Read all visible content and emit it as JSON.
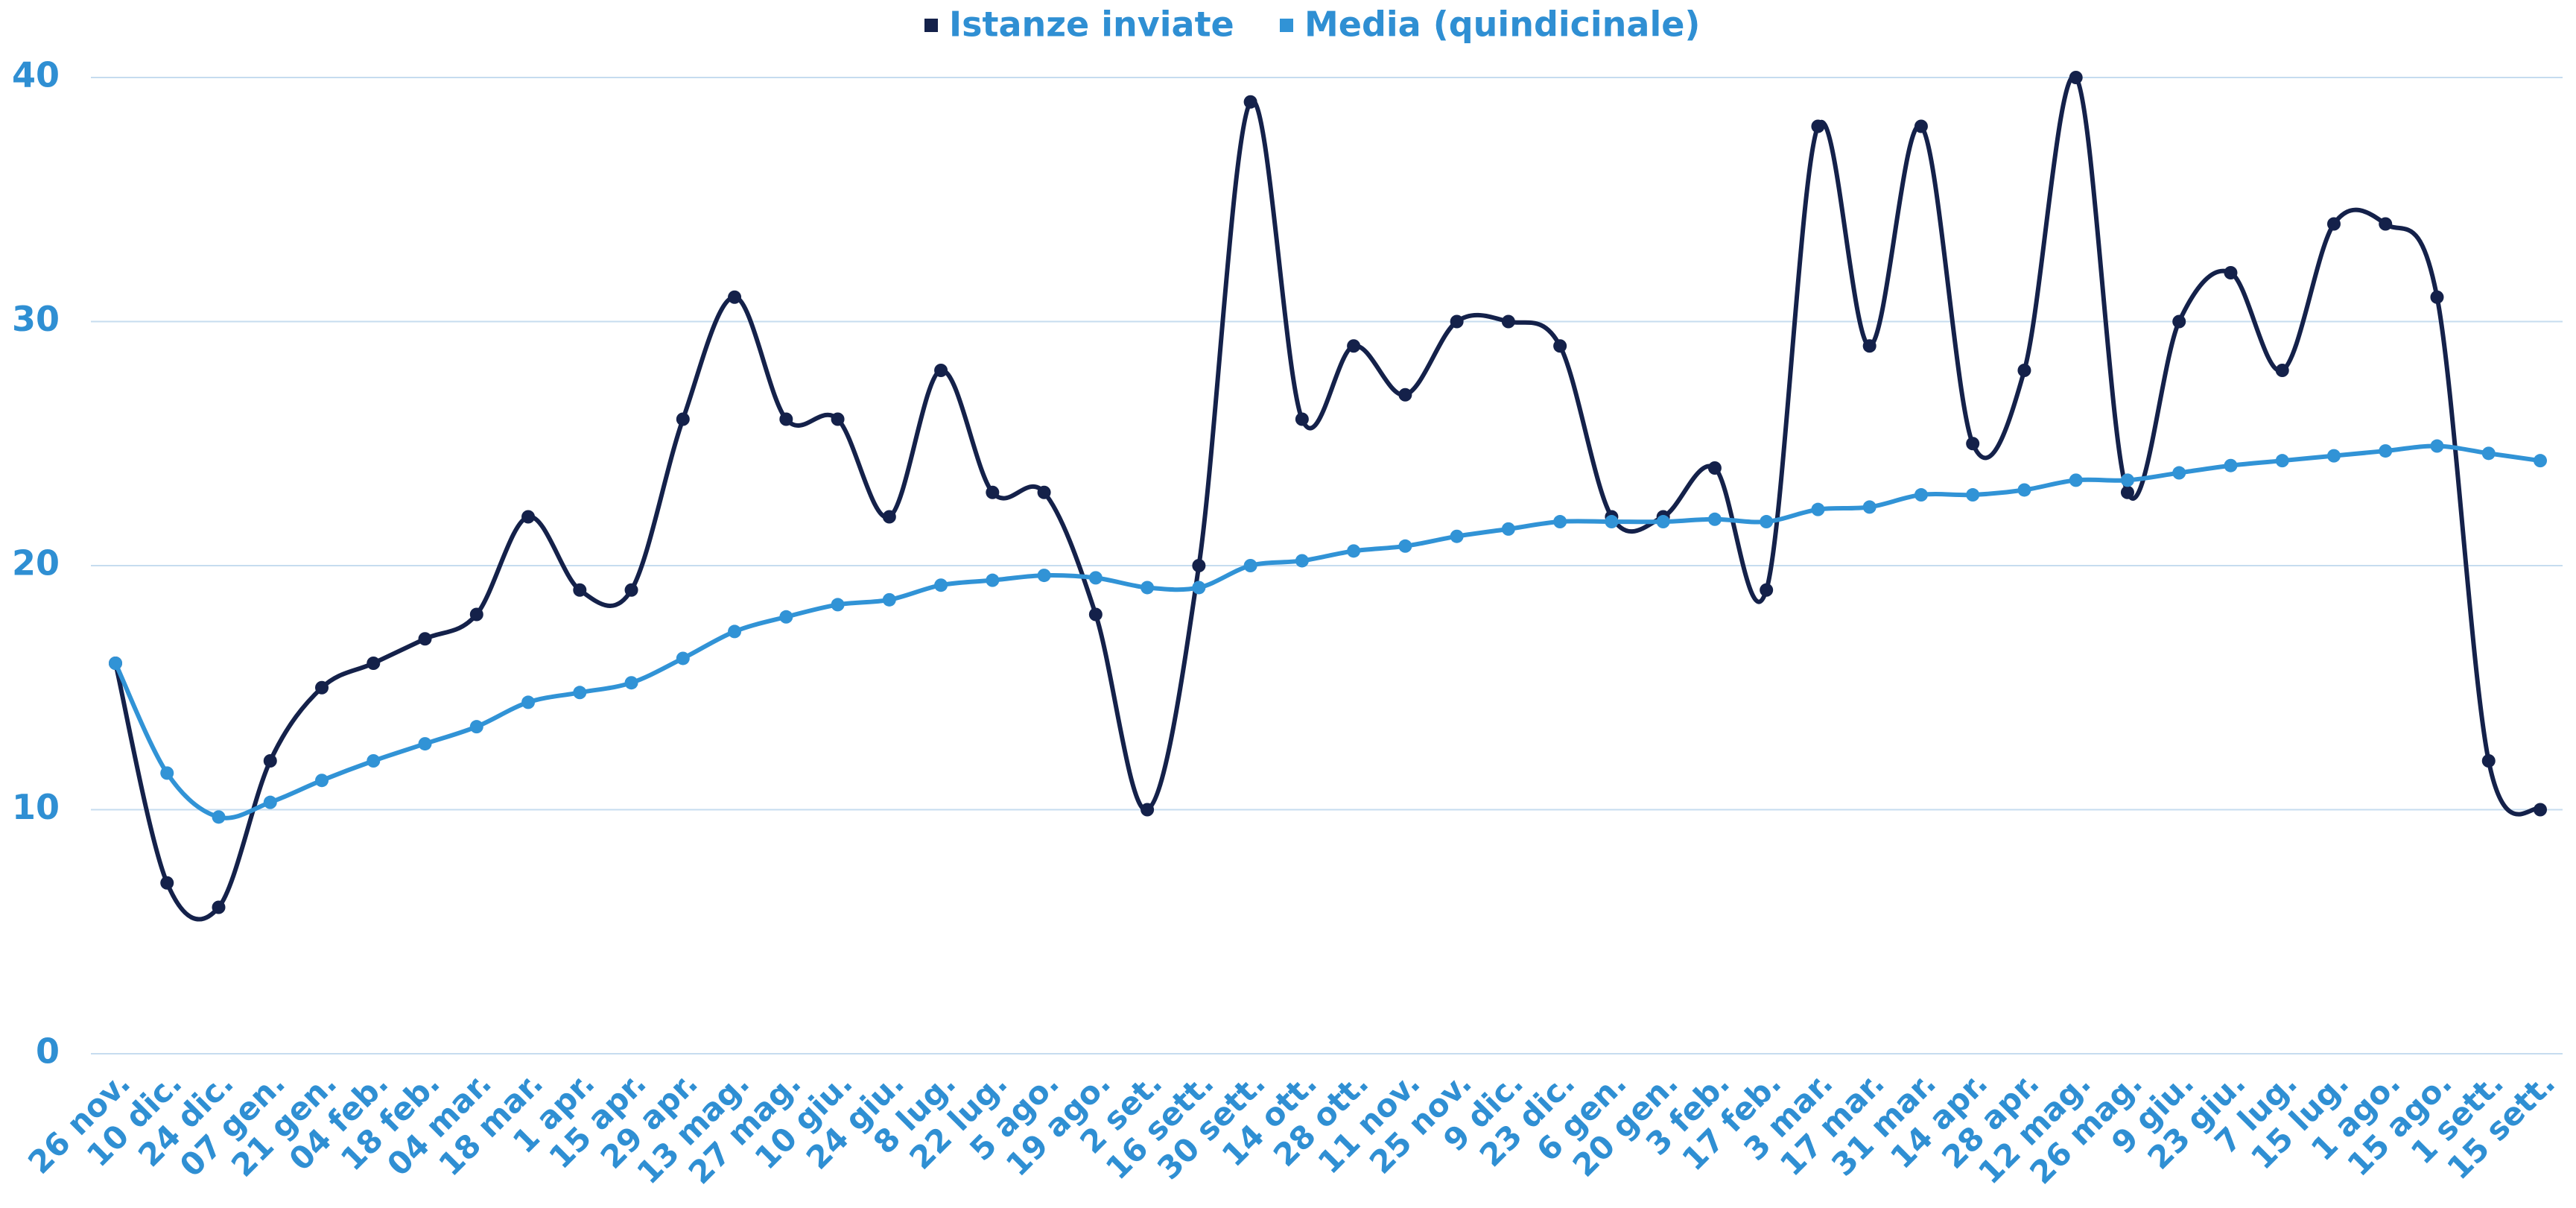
{
  "chart_data": {
    "type": "line",
    "categories": [
      "26 nov.",
      "10 dic.",
      "24 dic.",
      "07 gen.",
      "21 gen.",
      "04 feb.",
      "18 feb.",
      "04 mar.",
      "18 mar.",
      "1 apr.",
      "15 apr.",
      "29 apr.",
      "13 mag.",
      "27 mag.",
      "10 giu.",
      "24 giu.",
      "8 lug.",
      "22 lug.",
      "5 ago.",
      "19 ago.",
      "2 set.",
      "16 sett.",
      "30 sett.",
      "14 ott.",
      "28 ott.",
      "11 nov.",
      "25 nov.",
      "9 dic.",
      "23 dic.",
      "6 gen.",
      "20 gen.",
      "3 feb.",
      "17 feb.",
      "3 mar.",
      "17 mar.",
      "31 mar.",
      "14 apr.",
      "28 apr.",
      "12 mag.",
      "26 mag.",
      "9 giu.",
      "23 giu.",
      "7 lug.",
      "15 lug.",
      "1 ago.",
      "15 ago.",
      "1 sett.",
      "15 sett."
    ],
    "series": [
      {
        "name": "Istanze inviate",
        "color": "#14214a",
        "values": [
          16,
          7,
          6,
          12,
          15,
          16,
          17,
          18,
          22,
          19,
          19,
          26,
          31,
          26,
          26,
          22,
          28,
          23,
          23,
          18,
          10,
          20,
          39,
          26,
          29,
          27,
          30,
          30,
          29,
          22,
          22,
          24,
          19,
          38,
          29,
          38,
          25,
          28,
          40,
          23,
          30,
          32,
          28,
          34,
          34,
          31,
          12,
          10
        ]
      },
      {
        "name": "Media (quindicinale)",
        "color": "#3193d6",
        "values": [
          16,
          11.5,
          9.7,
          10.3,
          11.2,
          12,
          12.7,
          13.4,
          14.4,
          14.8,
          15.2,
          16.2,
          17.3,
          17.9,
          18.4,
          18.6,
          19.2,
          19.4,
          19.6,
          19.5,
          19.1,
          19.1,
          20,
          20.2,
          20.6,
          20.8,
          21.2,
          21.5,
          21.8,
          21.8,
          21.8,
          21.9,
          21.8,
          22.3,
          22.4,
          22.9,
          22.9,
          23.1,
          23.5,
          23.5,
          23.8,
          24.1,
          24.3,
          24.5,
          24.7,
          24.9,
          24.6,
          24.3
        ]
      }
    ],
    "ylim": [
      0,
      40
    ],
    "yticks": [
      0,
      10,
      20,
      30,
      40
    ],
    "grid": true,
    "legend": "top",
    "smooth": true
  }
}
